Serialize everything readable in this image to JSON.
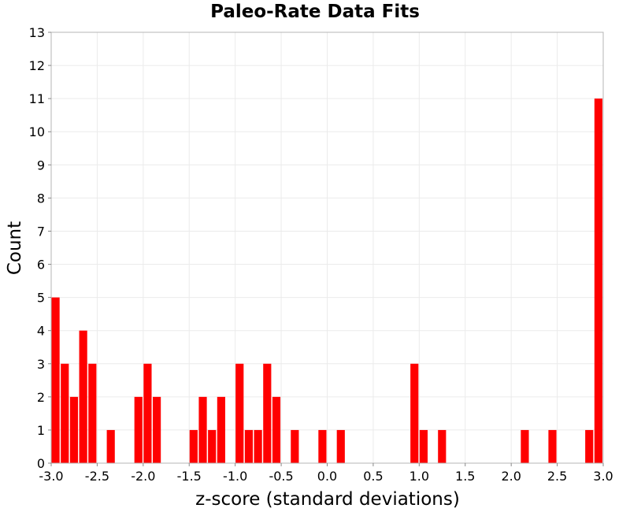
{
  "chart_data": {
    "type": "bar",
    "title": "Paleo-Rate Data Fits",
    "xlabel": "z-score (standard deviations)",
    "ylabel": "Count",
    "xlim": [
      -3.0,
      3.0
    ],
    "ylim": [
      0,
      13
    ],
    "bin_width": 0.1,
    "grid": true,
    "bar_color": "#ff0000",
    "x_ticks": [
      "-3.0",
      "-2.5",
      "-2.0",
      "-1.5",
      "-1.0",
      "-0.5",
      "0.0",
      "0.5",
      "1.0",
      "1.5",
      "2.0",
      "2.5",
      "3.0"
    ],
    "y_ticks": [
      "0",
      "1",
      "2",
      "3",
      "4",
      "5",
      "6",
      "7",
      "8",
      "9",
      "10",
      "11",
      "12",
      "13"
    ],
    "bins": [
      {
        "start": -3.0,
        "count": 5
      },
      {
        "start": -2.9,
        "count": 3
      },
      {
        "start": -2.8,
        "count": 2
      },
      {
        "start": -2.7,
        "count": 4
      },
      {
        "start": -2.6,
        "count": 3
      },
      {
        "start": -2.4,
        "count": 1
      },
      {
        "start": -2.1,
        "count": 2
      },
      {
        "start": -2.0,
        "count": 3
      },
      {
        "start": -1.9,
        "count": 2
      },
      {
        "start": -1.5,
        "count": 1
      },
      {
        "start": -1.4,
        "count": 2
      },
      {
        "start": -1.3,
        "count": 1
      },
      {
        "start": -1.2,
        "count": 2
      },
      {
        "start": -1.0,
        "count": 3
      },
      {
        "start": -0.9,
        "count": 1
      },
      {
        "start": -0.8,
        "count": 1
      },
      {
        "start": -0.7,
        "count": 3
      },
      {
        "start": -0.6,
        "count": 2
      },
      {
        "start": -0.4,
        "count": 1
      },
      {
        "start": -0.1,
        "count": 1
      },
      {
        "start": 0.1,
        "count": 1
      },
      {
        "start": 0.9,
        "count": 3
      },
      {
        "start": 1.0,
        "count": 1
      },
      {
        "start": 1.2,
        "count": 1
      },
      {
        "start": 2.1,
        "count": 1
      },
      {
        "start": 2.4,
        "count": 1
      },
      {
        "start": 2.8,
        "count": 1
      },
      {
        "start": 2.9,
        "count": 11
      }
    ]
  }
}
